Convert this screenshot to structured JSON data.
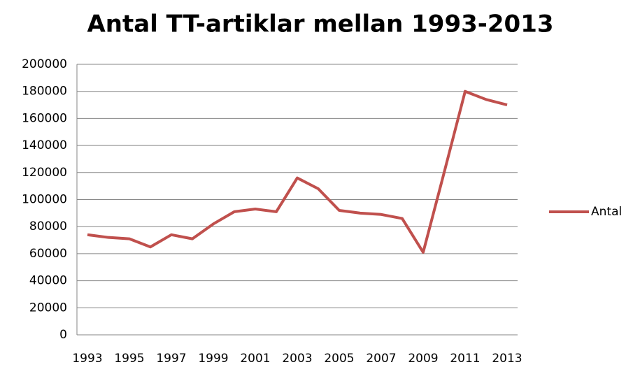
{
  "chart_data": {
    "type": "line",
    "title": "Antal TT-artiklar mellan 1993-2013",
    "categories": [
      "1993",
      null,
      "1995",
      null,
      "1997",
      null,
      "1999",
      null,
      "2001",
      null,
      "2003",
      null,
      "2005",
      null,
      "2007",
      null,
      "2009",
      null,
      "2011",
      null,
      "2013"
    ],
    "series": [
      {
        "name": "Antal",
        "color": "#c0504d",
        "values": [
          74000,
          72000,
          71000,
          65000,
          74000,
          71000,
          82000,
          91000,
          93000,
          91000,
          116000,
          108000,
          92000,
          90000,
          89000,
          86000,
          61000,
          120000,
          180000,
          174000,
          170000
        ]
      }
    ],
    "ylim": [
      0,
      200000
    ],
    "yticks": [
      0,
      20000,
      40000,
      60000,
      80000,
      100000,
      120000,
      140000,
      160000,
      180000,
      200000
    ],
    "grid": true,
    "legend": "right"
  }
}
